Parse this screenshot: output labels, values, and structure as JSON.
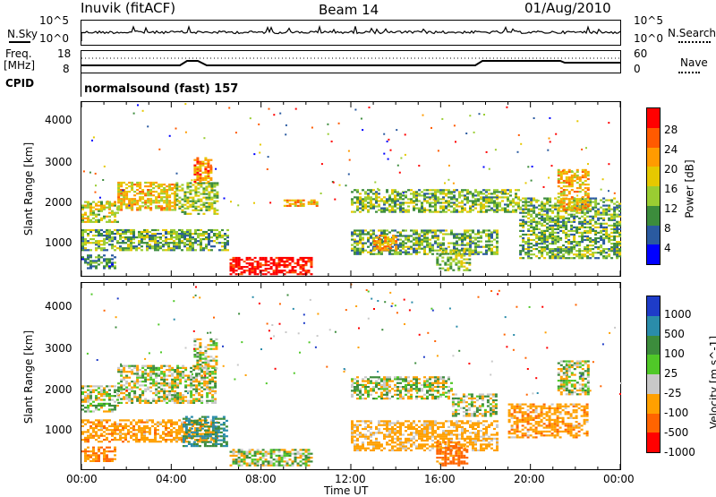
{
  "header": {
    "station": "Inuvik (fitACF)",
    "beam": "Beam 14",
    "date": "01/Aug/2010"
  },
  "top_panels": {
    "nsky_label": "N.Sky",
    "nsky_ticks": [
      "10^5",
      "10^0"
    ],
    "nsearch_label": "N.Search",
    "nsearch_ticks": [
      "10^5",
      "10^0"
    ],
    "freq_label": "Freq.",
    "freq_unit": "[MHz]",
    "freq_ticks": [
      "18",
      "8"
    ],
    "nave_label": "Nave",
    "nave_ticks": [
      "60",
      "0"
    ],
    "cpid_label": "CPID",
    "cpid_value": "normalsound (fast) 157"
  },
  "chart_data": [
    {
      "type": "heatmap",
      "name": "power",
      "ylabel": "Slant Range [km]",
      "yticks": [
        "4000",
        "3000",
        "2000",
        "1000"
      ],
      "ylim": [
        180,
        4500
      ],
      "xlim": [
        0,
        24
      ],
      "colorbar_label": "Power [dB]",
      "colorbar_ticks": [
        "28",
        "24",
        "20",
        "16",
        "12",
        "8",
        "4"
      ],
      "colorbar_colors": [
        "#ff0000",
        "#ff5a00",
        "#ff9b00",
        "#e6c800",
        "#9acd32",
        "#3c8c3c",
        "#2a5aa0",
        "#0000ff"
      ],
      "regions": [
        {
          "x0": 0.0,
          "x1": 1.6,
          "y0": 1500,
          "y1": 2000,
          "db": 14
        },
        {
          "x0": 1.6,
          "x1": 4.2,
          "y0": 1800,
          "y1": 2500,
          "db": 17
        },
        {
          "x0": 4.2,
          "x1": 6.0,
          "y0": 1700,
          "y1": 2500,
          "db": 12
        },
        {
          "x0": 5.0,
          "x1": 5.8,
          "y0": 2500,
          "y1": 3100,
          "db": 22
        },
        {
          "x0": 0.0,
          "x1": 6.5,
          "y0": 800,
          "y1": 1300,
          "db": 10
        },
        {
          "x0": 0.0,
          "x1": 1.5,
          "y0": 350,
          "y1": 700,
          "db": 7
        },
        {
          "x0": 6.6,
          "x1": 10.3,
          "y0": 200,
          "y1": 650,
          "db": 30
        },
        {
          "x0": 12.0,
          "x1": 19.5,
          "y0": 1750,
          "y1": 2300,
          "db": 11
        },
        {
          "x0": 12.0,
          "x1": 18.5,
          "y0": 700,
          "y1": 1300,
          "db": 10
        },
        {
          "x0": 13.0,
          "x1": 14.0,
          "y0": 800,
          "y1": 1200,
          "db": 20
        },
        {
          "x0": 15.8,
          "x1": 17.3,
          "y0": 300,
          "y1": 800,
          "db": 12
        },
        {
          "x0": 19.5,
          "x1": 24.0,
          "y0": 600,
          "y1": 2100,
          "db": 10
        },
        {
          "x0": 21.2,
          "x1": 22.6,
          "y0": 1800,
          "y1": 2800,
          "db": 18
        },
        {
          "x0": 9.0,
          "x1": 10.5,
          "y0": 1900,
          "y1": 2050,
          "db": 19
        }
      ]
    },
    {
      "type": "heatmap",
      "name": "velocity",
      "ylabel": "Slant Range [km]",
      "yticks": [
        "4000",
        "3000",
        "2000",
        "1000"
      ],
      "ylim": [
        180,
        4500
      ],
      "xlim": [
        0,
        24
      ],
      "xlabel": "Time UT",
      "xticks": [
        "00:00",
        "04:00",
        "08:00",
        "12:00",
        "16:00",
        "20:00",
        "00:00"
      ],
      "colorbar_label": "Velocity [m s^-1]",
      "colorbar_ticks": [
        "1000",
        "500",
        "100",
        "25",
        "-25",
        "-100",
        "-500",
        "-1000"
      ],
      "colorbar_colors": [
        "#1e3cc8",
        "#2a8caa",
        "#3c8c3c",
        "#50c828",
        "#c8c8c8",
        "#ffa000",
        "#ff6400",
        "#ff0000"
      ],
      "regions": [
        {
          "x0": 1.6,
          "x1": 6.0,
          "y0": 1700,
          "y1": 2600,
          "v": 0
        },
        {
          "x0": 0.0,
          "x1": 1.6,
          "y0": 1500,
          "y1": 2100,
          "v": 0
        },
        {
          "x0": 0.0,
          "x1": 6.0,
          "y0": 800,
          "y1": 1300,
          "v": -200
        },
        {
          "x0": 0.0,
          "x1": 1.5,
          "y0": 350,
          "y1": 700,
          "v": -300
        },
        {
          "x0": 6.6,
          "x1": 10.3,
          "y0": 250,
          "y1": 650,
          "v": 0
        },
        {
          "x0": 12.0,
          "x1": 16.5,
          "y0": 1800,
          "y1": 2300,
          "v": 0
        },
        {
          "x0": 16.5,
          "x1": 18.5,
          "y0": 1400,
          "y1": 1900,
          "v": 0
        },
        {
          "x0": 12.0,
          "x1": 18.5,
          "y0": 600,
          "y1": 1300,
          "v": -150
        },
        {
          "x0": 15.8,
          "x1": 17.2,
          "y0": 250,
          "y1": 800,
          "v": -400
        },
        {
          "x0": 19.0,
          "x1": 22.5,
          "y0": 900,
          "y1": 1700,
          "v": -200
        },
        {
          "x0": 21.2,
          "x1": 22.6,
          "y0": 1900,
          "y1": 2700,
          "v": 0
        },
        {
          "x0": 5.0,
          "x1": 6.0,
          "y0": 2500,
          "y1": 3200,
          "v": 0
        },
        {
          "x0": 4.5,
          "x1": 6.5,
          "y0": 700,
          "y1": 1400,
          "v": 300
        }
      ]
    }
  ]
}
